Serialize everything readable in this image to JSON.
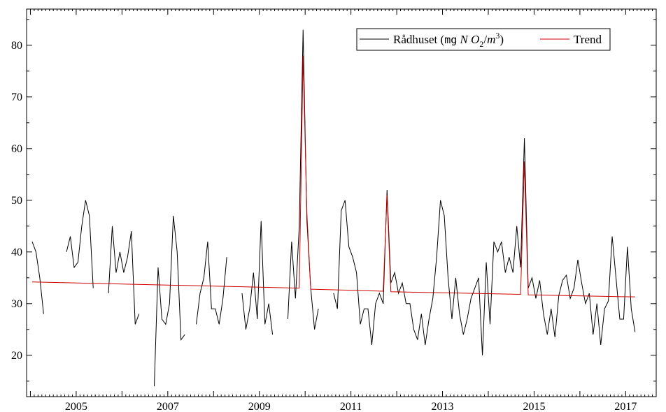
{
  "chart_data": {
    "type": "line",
    "x_axis": {
      "type": "date",
      "range": [
        "2003-12-01",
        "2017-09-01"
      ],
      "tick_labels": [
        "2005",
        "2007",
        "2009",
        "2011",
        "2013",
        "2015",
        "2017"
      ]
    },
    "y_axis": {
      "range": [
        12,
        87
      ],
      "tick_labels": [
        "20",
        "30",
        "40",
        "50",
        "60",
        "70",
        "80"
      ]
    },
    "grid": false,
    "legend_position": "top-right",
    "legend": {
      "series1_prefix": "Rådhuset (",
      "series1_unit_mg": "mg",
      "series1_unit_N": "N",
      "series1_unit_O": "O",
      "series1_unit_sub": "2",
      "series1_unit_mid": "/",
      "series1_unit_m": "m",
      "series1_unit_sup": "3",
      "series1_suffix": ")",
      "series2": "Trend"
    },
    "series": [
      {
        "name": "Rådhuset (mg N O2/m3)",
        "color": "#000000",
        "points": [
          [
            "2004-01",
            42
          ],
          [
            "2004-02",
            40
          ],
          [
            "2004-03",
            35
          ],
          [
            "2004-04",
            28
          ],
          null,
          [
            "2004-10",
            40
          ],
          [
            "2004-11",
            43
          ],
          [
            "2004-12",
            37
          ],
          [
            "2005-01",
            38
          ],
          [
            "2005-02",
            45
          ],
          [
            "2005-03",
            50
          ],
          [
            "2005-04",
            47
          ],
          [
            "2005-05",
            33
          ],
          null,
          [
            "2005-09",
            32
          ],
          [
            "2005-10",
            45
          ],
          [
            "2005-11",
            36
          ],
          [
            "2005-12",
            40
          ],
          [
            "2006-01",
            36
          ],
          [
            "2006-02",
            39
          ],
          [
            "2006-03",
            44
          ],
          [
            "2006-04",
            26
          ],
          [
            "2006-05",
            28
          ],
          null,
          [
            "2006-09",
            14
          ],
          [
            "2006-10",
            37
          ],
          [
            "2006-11",
            27
          ],
          [
            "2006-12",
            26
          ],
          [
            "2007-01",
            30
          ],
          [
            "2007-02",
            47
          ],
          [
            "2007-03",
            40
          ],
          [
            "2007-04",
            23
          ],
          [
            "2007-05",
            24
          ],
          null,
          [
            "2007-08",
            26
          ],
          [
            "2007-09",
            32
          ],
          [
            "2007-10",
            35
          ],
          [
            "2007-11",
            42
          ],
          [
            "2007-12",
            29
          ],
          [
            "2008-01",
            29
          ],
          [
            "2008-02",
            26
          ],
          [
            "2008-03",
            31
          ],
          [
            "2008-04",
            39
          ],
          null,
          [
            "2008-08",
            32
          ],
          [
            "2008-09",
            25
          ],
          [
            "2008-10",
            29
          ],
          [
            "2008-11",
            36
          ],
          [
            "2008-12",
            27
          ],
          [
            "2009-01",
            46
          ],
          [
            "2009-02",
            26
          ],
          [
            "2009-03",
            30
          ],
          [
            "2009-04",
            24
          ],
          null,
          [
            "2009-08",
            27
          ],
          [
            "2009-09",
            42
          ],
          [
            "2009-10",
            31
          ],
          [
            "2009-11",
            45
          ],
          [
            "2009-12",
            83
          ],
          [
            "2010-01",
            46
          ],
          [
            "2010-02",
            33
          ],
          [
            "2010-03",
            25
          ],
          [
            "2010-04",
            29
          ],
          null,
          [
            "2010-08",
            32
          ],
          [
            "2010-09",
            29
          ],
          [
            "2010-10",
            48
          ],
          [
            "2010-11",
            50
          ],
          [
            "2010-12",
            41
          ],
          [
            "2011-01",
            39
          ],
          [
            "2011-02",
            36
          ],
          [
            "2011-03",
            26
          ],
          [
            "2011-04",
            29
          ],
          [
            "2011-05",
            29
          ],
          [
            "2011-06",
            22
          ],
          [
            "2011-07",
            30
          ],
          [
            "2011-08",
            32
          ],
          [
            "2011-09",
            30
          ],
          [
            "2011-10",
            52
          ],
          [
            "2011-11",
            34
          ],
          [
            "2011-12",
            36
          ],
          [
            "2012-01",
            32
          ],
          [
            "2012-02",
            34
          ],
          [
            "2012-03",
            30
          ],
          [
            "2012-04",
            30
          ],
          [
            "2012-05",
            25
          ],
          [
            "2012-06",
            23
          ],
          [
            "2012-07",
            28
          ],
          [
            "2012-08",
            22
          ],
          [
            "2012-09",
            27
          ],
          [
            "2012-10",
            31
          ],
          [
            "2012-11",
            39
          ],
          [
            "2012-12",
            50
          ],
          [
            "2013-01",
            47
          ],
          [
            "2013-02",
            35
          ],
          [
            "2013-03",
            27
          ],
          [
            "2013-04",
            35
          ],
          [
            "2013-05",
            28
          ],
          [
            "2013-06",
            24
          ],
          [
            "2013-07",
            27
          ],
          [
            "2013-08",
            31
          ],
          [
            "2013-09",
            33
          ],
          [
            "2013-10",
            35
          ],
          [
            "2013-11",
            20
          ],
          [
            "2013-12",
            38
          ],
          [
            "2014-01",
            26
          ],
          [
            "2014-02",
            42
          ],
          [
            "2014-03",
            40
          ],
          [
            "2014-04",
            42
          ],
          [
            "2014-05",
            36
          ],
          [
            "2014-06",
            39
          ],
          [
            "2014-07",
            36
          ],
          [
            "2014-08",
            45
          ],
          [
            "2014-09",
            37
          ],
          [
            "2014-10",
            62
          ],
          [
            "2014-11",
            33
          ],
          [
            "2014-12",
            35
          ],
          [
            "2015-01",
            31
          ],
          [
            "2015-02",
            34.5
          ],
          [
            "2015-03",
            28
          ],
          [
            "2015-04",
            24
          ],
          [
            "2015-05",
            29
          ],
          [
            "2015-06",
            23.5
          ],
          [
            "2015-07",
            31.5
          ],
          [
            "2015-08",
            34.5
          ],
          [
            "2015-09",
            35.5
          ],
          [
            "2015-10",
            31
          ],
          [
            "2015-11",
            33
          ],
          [
            "2015-12",
            38.5
          ],
          [
            "2016-01",
            34
          ],
          [
            "2016-02",
            30
          ],
          [
            "2016-03",
            32
          ],
          [
            "2016-04",
            24
          ],
          [
            "2016-05",
            30
          ],
          [
            "2016-06",
            22
          ],
          [
            "2016-07",
            29
          ],
          [
            "2016-08",
            30.5
          ],
          [
            "2016-09",
            43
          ],
          [
            "2016-10",
            35
          ],
          [
            "2016-11",
            27
          ],
          [
            "2016-12",
            27
          ],
          [
            "2017-01",
            41
          ],
          [
            "2017-02",
            29
          ],
          [
            "2017-03",
            24.5
          ]
        ]
      },
      {
        "name": "Trend",
        "color": "#cc0000",
        "points": [
          [
            "2004-01",
            34.2
          ],
          [
            "2009-11",
            33
          ],
          [
            "2009-12",
            78
          ],
          [
            "2010-01",
            47.5
          ],
          [
            "2010-02",
            32.8
          ],
          [
            "2011-09",
            32.4
          ],
          [
            "2011-10",
            51
          ],
          [
            "2011-11",
            32.3
          ],
          [
            "2014-09",
            31.8
          ],
          [
            "2014-10",
            57.5
          ],
          [
            "2014-11",
            31.7
          ],
          [
            "2017-03",
            31.3
          ]
        ]
      }
    ]
  }
}
